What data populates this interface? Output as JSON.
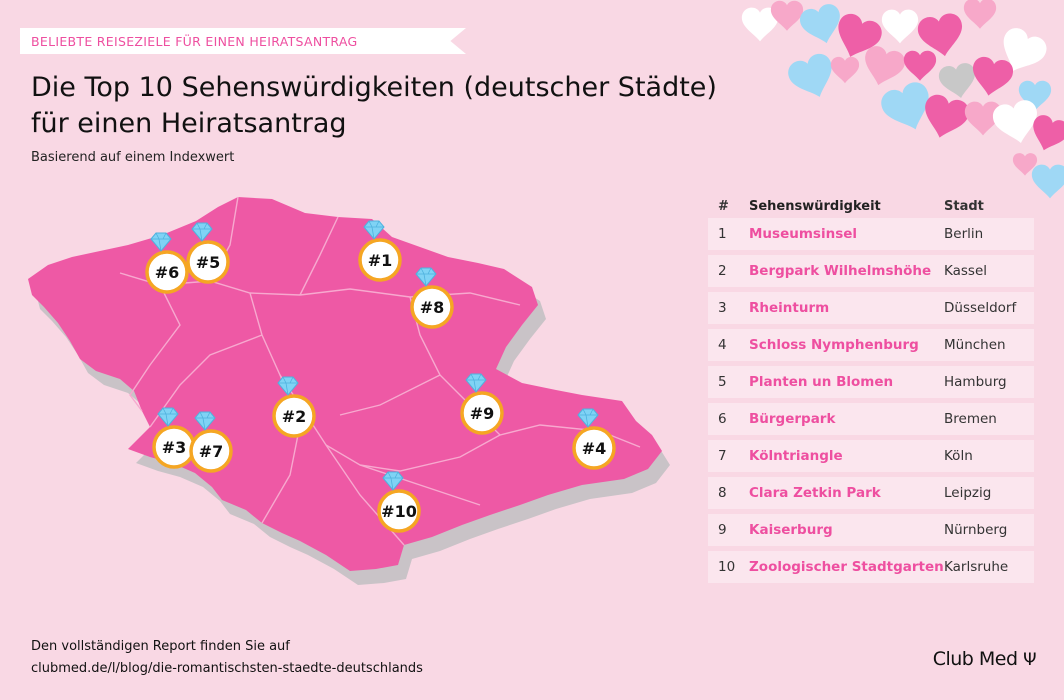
{
  "header": {
    "kicker": "BELIEBTE REISEZIELE FÜR EINEN HEIRATSANTRAG",
    "title_line1": "Die Top 10 Sehenswürdigkeiten (deutscher Städte)",
    "title_line2": "für einen Heiratsantrag",
    "subtitle": "Basierend auf einem Indexwert"
  },
  "map": {
    "markers": [
      {
        "label": "#1"
      },
      {
        "label": "#2"
      },
      {
        "label": "#3"
      },
      {
        "label": "#4"
      },
      {
        "label": "#5"
      },
      {
        "label": "#6"
      },
      {
        "label": "#7"
      },
      {
        "label": "#8"
      },
      {
        "label": "#9"
      },
      {
        "label": "#10"
      }
    ],
    "colors": {
      "land": "#ee59a5",
      "land_side": "#c9c3c7",
      "marker_ring": "#f5a623",
      "diamond": "#7fd3f5"
    }
  },
  "table": {
    "headers": {
      "rank": "#",
      "site": "Sehenswürdigkeit",
      "city": "Stadt"
    },
    "rows": [
      {
        "rank": "1",
        "site": "Museumsinsel",
        "city": "Berlin"
      },
      {
        "rank": "2",
        "site": "Bergpark Wilhelmshöhe",
        "city": "Kassel"
      },
      {
        "rank": "3",
        "site": "Rheinturm",
        "city": "Düsseldorf"
      },
      {
        "rank": "4",
        "site": "Schloss Nymphenburg",
        "city": "München"
      },
      {
        "rank": "5",
        "site": "Planten un Blomen",
        "city": "Hamburg"
      },
      {
        "rank": "6",
        "site": "Bürgerpark",
        "city": "Bremen"
      },
      {
        "rank": "7",
        "site": "Kölntriangle",
        "city": "Köln"
      },
      {
        "rank": "8",
        "site": "Clara Zetkin Park",
        "city": "Leipzig"
      },
      {
        "rank": "9",
        "site": "Kaiserburg",
        "city": "Nürnberg"
      },
      {
        "rank": "10",
        "site": "Zoologischer Stadtgarten",
        "city": "Karlsruhe"
      }
    ]
  },
  "footer": {
    "text": "Den vollständigen Report finden Sie auf",
    "link": "clubmed.de/l/blog/die-romantischsten-staedte-deutschlands"
  },
  "brand": {
    "logo": "Club Med",
    "logo_icon": "trident-icon",
    "accent": "#ee4fa0"
  }
}
